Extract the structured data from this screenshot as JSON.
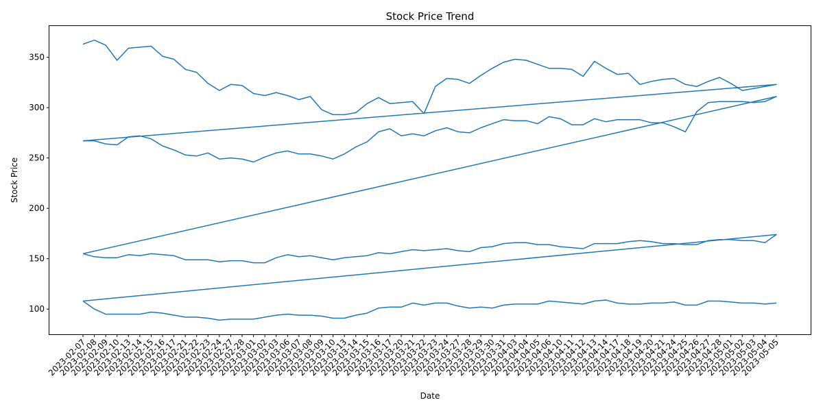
{
  "chart_data": {
    "type": "line",
    "title": "Stock Price Trend",
    "xlabel": "Date",
    "ylabel": "Stock Price",
    "ylim": [
      75,
      381
    ],
    "yticks": [
      100,
      150,
      200,
      250,
      300,
      350
    ],
    "grid": false,
    "legend": "none",
    "line_color": "#1f77b4",
    "x": [
      "2023-02-07",
      "2023-02-08",
      "2023-02-09",
      "2023-02-10",
      "2023-02-13",
      "2023-02-14",
      "2023-02-15",
      "2023-02-16",
      "2023-02-17",
      "2023-02-21",
      "2023-02-22",
      "2023-02-23",
      "2023-02-24",
      "2023-02-27",
      "2023-02-28",
      "2023-03-01",
      "2023-03-02",
      "2023-03-03",
      "2023-03-06",
      "2023-03-07",
      "2023-03-08",
      "2023-03-09",
      "2023-03-10",
      "2023-03-13",
      "2023-03-14",
      "2023-03-15",
      "2023-03-16",
      "2023-03-17",
      "2023-03-20",
      "2023-03-21",
      "2023-03-22",
      "2023-03-23",
      "2023-03-24",
      "2023-03-27",
      "2023-03-28",
      "2023-03-29",
      "2023-03-30",
      "2023-03-31",
      "2023-04-03",
      "2023-04-04",
      "2023-04-05",
      "2023-04-06",
      "2023-04-10",
      "2023-04-11",
      "2023-04-12",
      "2023-04-13",
      "2023-04-14",
      "2023-04-17",
      "2023-04-18",
      "2023-04-19",
      "2023-04-20",
      "2023-04-21",
      "2023-04-24",
      "2023-04-25",
      "2023-04-26",
      "2023-04-27",
      "2023-04-28",
      "2023-05-01",
      "2023-05-02",
      "2023-05-03",
      "2023-05-04",
      "2023-05-05"
    ],
    "series": [
      {
        "values": [
          363,
          367,
          362,
          347,
          359,
          360,
          361,
          351,
          348,
          338,
          335,
          324,
          317,
          323,
          322,
          314,
          312,
          315,
          312,
          308,
          311,
          298,
          293,
          293,
          295,
          304,
          310,
          304,
          305,
          306,
          294,
          321,
          329,
          328,
          324,
          332,
          339,
          345,
          348,
          347,
          343,
          339,
          339,
          338,
          331,
          346,
          339,
          333,
          334,
          323,
          326,
          328,
          329,
          323,
          321,
          326,
          330,
          324,
          317,
          319,
          321,
          323
        ]
      },
      {
        "values": [
          267,
          267,
          264,
          263,
          271,
          272,
          269,
          262,
          258,
          253,
          252,
          255,
          249,
          250,
          249,
          246,
          251,
          255,
          257,
          254,
          254,
          252,
          249,
          254,
          261,
          266,
          276,
          279,
          272,
          274,
          272,
          277,
          280,
          276,
          275,
          280,
          284,
          288,
          287,
          287,
          284,
          291,
          289,
          283,
          283,
          289,
          286,
          288,
          288,
          288,
          285,
          285,
          281,
          276,
          296,
          305,
          306,
          306,
          306,
          305,
          306,
          311
        ]
      },
      {
        "values": [
          155,
          152,
          151,
          151,
          154,
          153,
          155,
          154,
          153,
          149,
          149,
          149,
          147,
          148,
          148,
          146,
          146,
          151,
          154,
          152,
          153,
          151,
          149,
          151,
          152,
          153,
          156,
          155,
          157,
          159,
          158,
          159,
          160,
          158,
          157,
          161,
          162,
          165,
          166,
          166,
          164,
          164,
          162,
          161,
          160,
          165,
          165,
          165,
          167,
          168,
          167,
          165,
          165,
          164,
          164,
          168,
          169,
          169,
          168,
          168,
          166,
          174
        ]
      },
      {
        "values": [
          108,
          100,
          95,
          95,
          95,
          95,
          97,
          96,
          94,
          92,
          92,
          91,
          89,
          90,
          90,
          90,
          92,
          94,
          95,
          94,
          94,
          93,
          91,
          91,
          94,
          96,
          101,
          102,
          102,
          106,
          104,
          106,
          106,
          103,
          101,
          102,
          101,
          104,
          105,
          105,
          105,
          108,
          107,
          106,
          105,
          108,
          109,
          106,
          105,
          105,
          106,
          106,
          107,
          104,
          104,
          108,
          108,
          107,
          106,
          106,
          105,
          106
        ]
      }
    ]
  }
}
